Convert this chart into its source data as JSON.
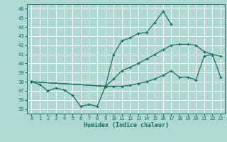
{
  "xlabel": "Humidex (Indice chaleur)",
  "bg_color": "#aed8d0",
  "grid_color": "#ffffff",
  "line_color": "#1a6b6b",
  "xlim": [
    -0.5,
    23.5
  ],
  "ylim": [
    34.5,
    46.5
  ],
  "xticks": [
    0,
    1,
    2,
    3,
    4,
    5,
    6,
    7,
    8,
    9,
    10,
    11,
    12,
    13,
    14,
    15,
    16,
    17,
    18,
    19,
    20,
    21,
    22,
    23
  ],
  "yticks": [
    35,
    36,
    37,
    38,
    39,
    40,
    41,
    42,
    43,
    44,
    45,
    46
  ],
  "line1_x": [
    0,
    1,
    2,
    3,
    4,
    5,
    6,
    7,
    8,
    9,
    10,
    11,
    12,
    13,
    14,
    15,
    16,
    17
  ],
  "line1_y": [
    38.0,
    37.7,
    37.0,
    37.3,
    37.1,
    36.5,
    35.3,
    35.5,
    35.3,
    37.5,
    41.0,
    42.5,
    42.8,
    43.3,
    43.4,
    44.5,
    45.7,
    44.3
  ],
  "line2_x": [
    0,
    9,
    10,
    11,
    12,
    13,
    14,
    15,
    16,
    17,
    18,
    19,
    20,
    21,
    22,
    23
  ],
  "line2_y": [
    38.0,
    37.5,
    38.3,
    39.2,
    39.6,
    40.0,
    40.5,
    41.0,
    41.5,
    42.0,
    42.1,
    42.1,
    42.0,
    41.3,
    41.0,
    40.8
  ],
  "line3_x": [
    0,
    9,
    10,
    11,
    12,
    13,
    14,
    15,
    16,
    17,
    18,
    19,
    20,
    21,
    22,
    23
  ],
  "line3_y": [
    38.0,
    37.5,
    37.5,
    37.5,
    37.6,
    37.8,
    38.0,
    38.3,
    38.7,
    39.2,
    38.5,
    38.5,
    38.2,
    40.8,
    41.0,
    38.5
  ]
}
